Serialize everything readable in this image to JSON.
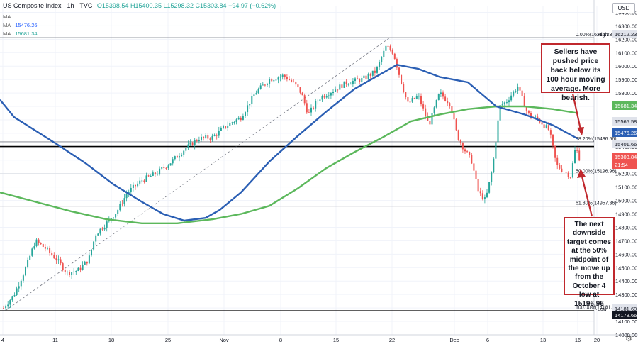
{
  "header": {
    "title": "US Composite Index · 1h · TVC",
    "ohlc": "O15398.54 H15400.35 L15298.32 C15303.84 −94.97 (−0.62%)",
    "ma_rows": [
      {
        "label": "MA",
        "value": ""
      },
      {
        "label": "MA",
        "value": "15476.26"
      },
      {
        "label": "MA",
        "value": "15681.34"
      }
    ],
    "currency_button": "USD"
  },
  "annotations": {
    "callout_top": "Sellers have pushed price back below its 100 hour moving average. More bearish.",
    "callout_bottom": "The next downside target comes at the 50% midpoint of the move up from the October 4 low at 15196.96"
  },
  "colors": {
    "ma100": "#2b5fb4",
    "ma200": "#5cb85c",
    "up": "#26a69a",
    "down": "#ef5350",
    "callout_border": "#c0282d",
    "price_tag": "#ef5350"
  },
  "chart_data": {
    "type": "candlestick",
    "ylim": [
      14000,
      16450
    ],
    "y_ticks": [
      14000,
      14100,
      14200,
      14300,
      14400,
      14500,
      14600,
      14700,
      14800,
      14900,
      15000,
      15100,
      15200,
      15300,
      15400,
      15500,
      15600,
      15700,
      15800,
      15900,
      16000,
      16100,
      16200,
      16300,
      16400
    ],
    "x_tick_labels": [
      "4",
      "11",
      "18",
      "25",
      "Nov",
      "8",
      "15",
      "22",
      "Dec",
      "6",
      "13",
      "16",
      "20"
    ],
    "fib_levels": [
      {
        "label": "0.00%(16212.23)",
        "value": 16212.23
      },
      {
        "label": "38.20%(15436.56)",
        "value": 15436.56
      },
      {
        "label": "50.00%(15196.96)",
        "value": 15196.96
      },
      {
        "label": "61.80%(14957.36)",
        "value": 14957.36
      },
      {
        "label": "100.00%(14181.69)",
        "value": 14181.69
      }
    ],
    "price_tags": [
      {
        "label": "High",
        "value": "16212.23",
        "style": "gray"
      },
      {
        "label": "",
        "value": "15681.34",
        "style": "green"
      },
      {
        "label": "",
        "value": "15565.58",
        "style": "gray"
      },
      {
        "label": "",
        "value": "15476.26",
        "style": "blue"
      },
      {
        "label": "",
        "value": "15401.66",
        "style": "gray"
      },
      {
        "label": "",
        "value": "15303.84",
        "style": "red"
      },
      {
        "label": "",
        "value": "21:54",
        "style": "red"
      },
      {
        "label": "Low",
        "value": "14181.69",
        "style": "gray"
      },
      {
        "label": "",
        "value": "14178.66",
        "style": "black"
      }
    ],
    "horizontal_lines": [
      15401.66,
      15436.56,
      15196.96,
      14957.36,
      14178.66,
      16212.23
    ],
    "ma100": [
      [
        0,
        15750
      ],
      [
        20,
        15620
      ],
      [
        50,
        15520
      ],
      [
        80,
        15420
      ],
      [
        120,
        15280
      ],
      [
        160,
        15120
      ],
      [
        200,
        14990
      ],
      [
        230,
        14900
      ],
      [
        260,
        14850
      ],
      [
        290,
        14870
      ],
      [
        310,
        14930
      ],
      [
        340,
        15060
      ],
      [
        380,
        15290
      ],
      [
        420,
        15480
      ],
      [
        460,
        15660
      ],
      [
        500,
        15830
      ],
      [
        540,
        15950
      ],
      [
        560,
        16010
      ],
      [
        590,
        15980
      ],
      [
        620,
        15920
      ],
      [
        660,
        15880
      ],
      [
        700,
        15700
      ],
      [
        740,
        15640
      ],
      [
        780,
        15560
      ],
      [
        815,
        15460
      ]
    ],
    "ma200": [
      [
        0,
        15060
      ],
      [
        50,
        14990
      ],
      [
        100,
        14920
      ],
      [
        150,
        14860
      ],
      [
        200,
        14830
      ],
      [
        250,
        14830
      ],
      [
        300,
        14860
      ],
      [
        340,
        14900
      ],
      [
        380,
        14960
      ],
      [
        420,
        15090
      ],
      [
        460,
        15240
      ],
      [
        500,
        15360
      ],
      [
        540,
        15470
      ],
      [
        580,
        15590
      ],
      [
        620,
        15640
      ],
      [
        660,
        15680
      ],
      [
        700,
        15700
      ],
      [
        740,
        15700
      ],
      [
        780,
        15680
      ],
      [
        815,
        15650
      ]
    ],
    "candles_path": [
      [
        5,
        14200
      ],
      [
        20,
        14300
      ],
      [
        35,
        14480
      ],
      [
        50,
        14700
      ],
      [
        65,
        14640
      ],
      [
        80,
        14560
      ],
      [
        95,
        14460
      ],
      [
        110,
        14480
      ],
      [
        125,
        14560
      ],
      [
        135,
        14750
      ],
      [
        150,
        14830
      ],
      [
        165,
        14920
      ],
      [
        180,
        15060
      ],
      [
        200,
        15150
      ],
      [
        220,
        15200
      ],
      [
        240,
        15280
      ],
      [
        260,
        15380
      ],
      [
        280,
        15460
      ],
      [
        300,
        15470
      ],
      [
        320,
        15560
      ],
      [
        340,
        15620
      ],
      [
        360,
        15800
      ],
      [
        380,
        15900
      ],
      [
        400,
        15930
      ],
      [
        415,
        15870
      ],
      [
        425,
        15800
      ],
      [
        435,
        15640
      ],
      [
        450,
        15760
      ],
      [
        470,
        15820
      ],
      [
        490,
        15880
      ],
      [
        510,
        15900
      ],
      [
        530,
        15960
      ],
      [
        545,
        16150
      ],
      [
        555,
        16100
      ],
      [
        565,
        15900
      ],
      [
        575,
        15720
      ],
      [
        590,
        15780
      ],
      [
        605,
        15560
      ],
      [
        620,
        15800
      ],
      [
        635,
        15720
      ],
      [
        645,
        15480
      ],
      [
        655,
        15380
      ],
      [
        665,
        15300
      ],
      [
        675,
        15060
      ],
      [
        685,
        15000
      ],
      [
        695,
        15250
      ],
      [
        705,
        15700
      ],
      [
        715,
        15740
      ],
      [
        730,
        15850
      ],
      [
        745,
        15640
      ],
      [
        760,
        15600
      ],
      [
        775,
        15520
      ],
      [
        785,
        15260
      ],
      [
        795,
        15220
      ],
      [
        805,
        15180
      ],
      [
        812,
        15400
      ],
      [
        818,
        15303
      ]
    ]
  }
}
